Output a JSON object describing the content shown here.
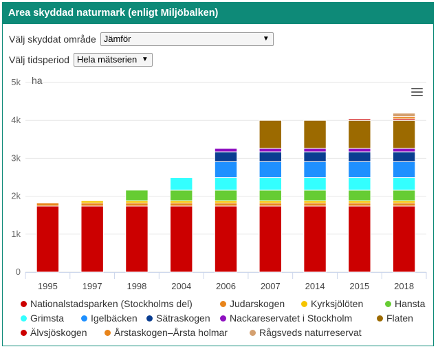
{
  "header": {
    "title": "Area skyddad naturmark (enligt Miljöbalken)"
  },
  "controls": {
    "area_label": "Välj skyddat område",
    "area_value": "Jämför",
    "period_label": "Välj tidsperiod",
    "period_value": "Hela mätserien"
  },
  "menu_icon": "hamburger-menu-icon",
  "chart_data": {
    "type": "bar",
    "stacked": true,
    "unit_label": "ha",
    "categories": [
      "1995",
      "1997",
      "1998",
      "2004",
      "2006",
      "2007",
      "2014",
      "2015",
      "2018"
    ],
    "y_ticks": [
      "0",
      "1k",
      "2k",
      "3k",
      "4k",
      "5k"
    ],
    "ylim": [
      0,
      5000
    ],
    "grid": true,
    "legend_position": "bottom",
    "series": [
      {
        "name": "Nationalstadsparken (Stockholms del)",
        "color": "#cc0000",
        "values": [
          1740,
          1740,
          1740,
          1740,
          1740,
          1740,
          1740,
          1740,
          1740
        ]
      },
      {
        "name": "Judarskogen",
        "color": "#e8841a",
        "values": [
          80,
          80,
          80,
          80,
          80,
          80,
          80,
          80,
          80
        ]
      },
      {
        "name": "Kyrksjölöten",
        "color": "#f5c400",
        "values": [
          0,
          60,
          60,
          60,
          60,
          60,
          60,
          60,
          60
        ]
      },
      {
        "name": "Hansta",
        "color": "#66cc33",
        "values": [
          0,
          0,
          280,
          280,
          280,
          280,
          280,
          280,
          280
        ]
      },
      {
        "name": "Grimsta",
        "color": "#33ffff",
        "values": [
          0,
          0,
          0,
          330,
          330,
          330,
          330,
          330,
          330
        ]
      },
      {
        "name": "Igelbäcken",
        "color": "#1e90ff",
        "values": [
          0,
          0,
          0,
          0,
          420,
          420,
          420,
          420,
          420
        ]
      },
      {
        "name": "Sätraskogen",
        "color": "#0a3d91",
        "values": [
          0,
          0,
          0,
          0,
          260,
          260,
          260,
          260,
          260
        ]
      },
      {
        "name": "Nackareservatet i Stockholm",
        "color": "#8e10c0",
        "values": [
          0,
          0,
          0,
          0,
          90,
          90,
          90,
          90,
          90
        ]
      },
      {
        "name": "Flaten",
        "color": "#9c6a00",
        "values": [
          0,
          0,
          0,
          0,
          0,
          740,
          740,
          740,
          740
        ]
      },
      {
        "name": "Älvsjöskogen",
        "color": "#cc0000",
        "values": [
          0,
          0,
          0,
          0,
          0,
          0,
          0,
          40,
          40
        ]
      },
      {
        "name": "Årstaskogen–Årsta holmar",
        "color": "#e8841a",
        "values": [
          0,
          0,
          0,
          0,
          0,
          0,
          0,
          0,
          60
        ]
      },
      {
        "name": "Rågsveds naturreservat",
        "color": "#d4a070",
        "values": [
          0,
          0,
          0,
          0,
          0,
          0,
          0,
          0,
          90
        ]
      }
    ]
  }
}
